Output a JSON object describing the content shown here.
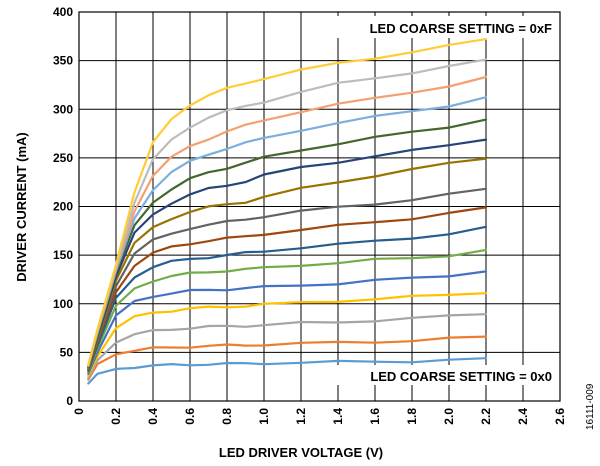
{
  "chart_data": {
    "type": "line",
    "xlabel": "LED DRIVER VOLTAGE (V)",
    "ylabel": "DRIVER CURRENT (mA)",
    "xlim": [
      0,
      2.6
    ],
    "ylim": [
      0,
      400
    ],
    "x_ticks": [
      "0",
      "0.2",
      "0.4",
      "0.6",
      "0.8",
      "1.0",
      "1.2",
      "1.4",
      "1.6",
      "1.8",
      "2.0",
      "2.2",
      "2.4",
      "2.6"
    ],
    "y_ticks": [
      "0",
      "50",
      "100",
      "150",
      "200",
      "250",
      "300",
      "350",
      "400"
    ],
    "grid": true,
    "annotations": {
      "top": "LED COARSE SETTING = 0xF",
      "bottom": "LED COARSE SETTING = 0x0"
    },
    "figure_id": "16111-009",
    "x": [
      0.05,
      0.1,
      0.2,
      0.3,
      0.4,
      0.5,
      0.6,
      0.7,
      0.8,
      0.9,
      1.0,
      1.2,
      1.4,
      1.6,
      1.8,
      2.0,
      2.2
    ],
    "series": [
      {
        "color": "#5b9bd5",
        "values": [
          18,
          28,
          33,
          35,
          36,
          37,
          37.5,
          38,
          38,
          38.5,
          39,
          39.5,
          40,
          40.5,
          41,
          42,
          43
        ]
      },
      {
        "color": "#ed7d31",
        "values": [
          22,
          38,
          48,
          52,
          54,
          55,
          56,
          56.5,
          57,
          57.5,
          58,
          59,
          60,
          61,
          62,
          64,
          66
        ]
      },
      {
        "color": "#a5a5a5",
        "values": [
          24,
          42,
          60,
          68,
          72,
          74,
          75,
          76,
          77,
          77.5,
          78,
          80,
          81,
          83,
          85,
          87,
          90
        ]
      },
      {
        "color": "#ffc000",
        "values": [
          26,
          46,
          75,
          86,
          91,
          93,
          95,
          96,
          97,
          98,
          99,
          101,
          103,
          105,
          107,
          109,
          112
        ]
      },
      {
        "color": "#4472c4",
        "values": [
          28,
          50,
          88,
          102,
          108,
          111,
          113,
          114,
          115,
          116,
          117,
          119,
          121,
          124,
          126,
          129,
          134
        ]
      },
      {
        "color": "#70ad47",
        "values": [
          30,
          54,
          98,
          116,
          124,
          128,
          131,
          133,
          134,
          135,
          137,
          140,
          142,
          145,
          147,
          150,
          155
        ]
      },
      {
        "color": "#255e91",
        "values": [
          31,
          57,
          106,
          128,
          138,
          143,
          146,
          148,
          150,
          152,
          154,
          158,
          161,
          164,
          168,
          172,
          178
        ]
      },
      {
        "color": "#9e480e",
        "values": [
          32,
          60,
          112,
          140,
          152,
          158,
          162,
          165,
          167,
          169,
          172,
          176,
          180,
          184,
          188,
          193,
          198
        ]
      },
      {
        "color": "#636363",
        "values": [
          33,
          62,
          118,
          152,
          165,
          172,
          178,
          181,
          184,
          187,
          190,
          195,
          199,
          203,
          207,
          212,
          218
        ]
      },
      {
        "color": "#997300",
        "values": [
          34,
          64,
          124,
          162,
          178,
          188,
          195,
          199,
          202,
          205,
          210,
          218,
          225,
          232,
          238,
          244,
          250
        ]
      },
      {
        "color": "#264478",
        "values": [
          35,
          66,
          128,
          172,
          192,
          204,
          212,
          218,
          222,
          226,
          232,
          240,
          246,
          252,
          257,
          263,
          270
        ]
      },
      {
        "color": "#43682b",
        "values": [
          35,
          68,
          132,
          180,
          205,
          218,
          228,
          235,
          240,
          245,
          250,
          258,
          265,
          271,
          276,
          282,
          290
        ]
      },
      {
        "color": "#7cafdd",
        "values": [
          36,
          70,
          134,
          188,
          218,
          235,
          246,
          254,
          260,
          265,
          270,
          279,
          286,
          292,
          298,
          304,
          312
        ]
      },
      {
        "color": "#f4a071",
        "values": [
          36,
          72,
          136,
          196,
          232,
          250,
          262,
          270,
          277,
          283,
          289,
          298,
          305,
          311,
          318,
          324,
          332
        ]
      },
      {
        "color": "#bcbcbc",
        "values": [
          37,
          73,
          138,
          205,
          248,
          268,
          282,
          292,
          298,
          303,
          308,
          318,
          326,
          332,
          338,
          344,
          350
        ]
      },
      {
        "color": "#ffcd33",
        "values": [
          37,
          74,
          140,
          215,
          265,
          290,
          305,
          314,
          321,
          327,
          332,
          340,
          347,
          353,
          359,
          365,
          372
        ]
      }
    ]
  }
}
